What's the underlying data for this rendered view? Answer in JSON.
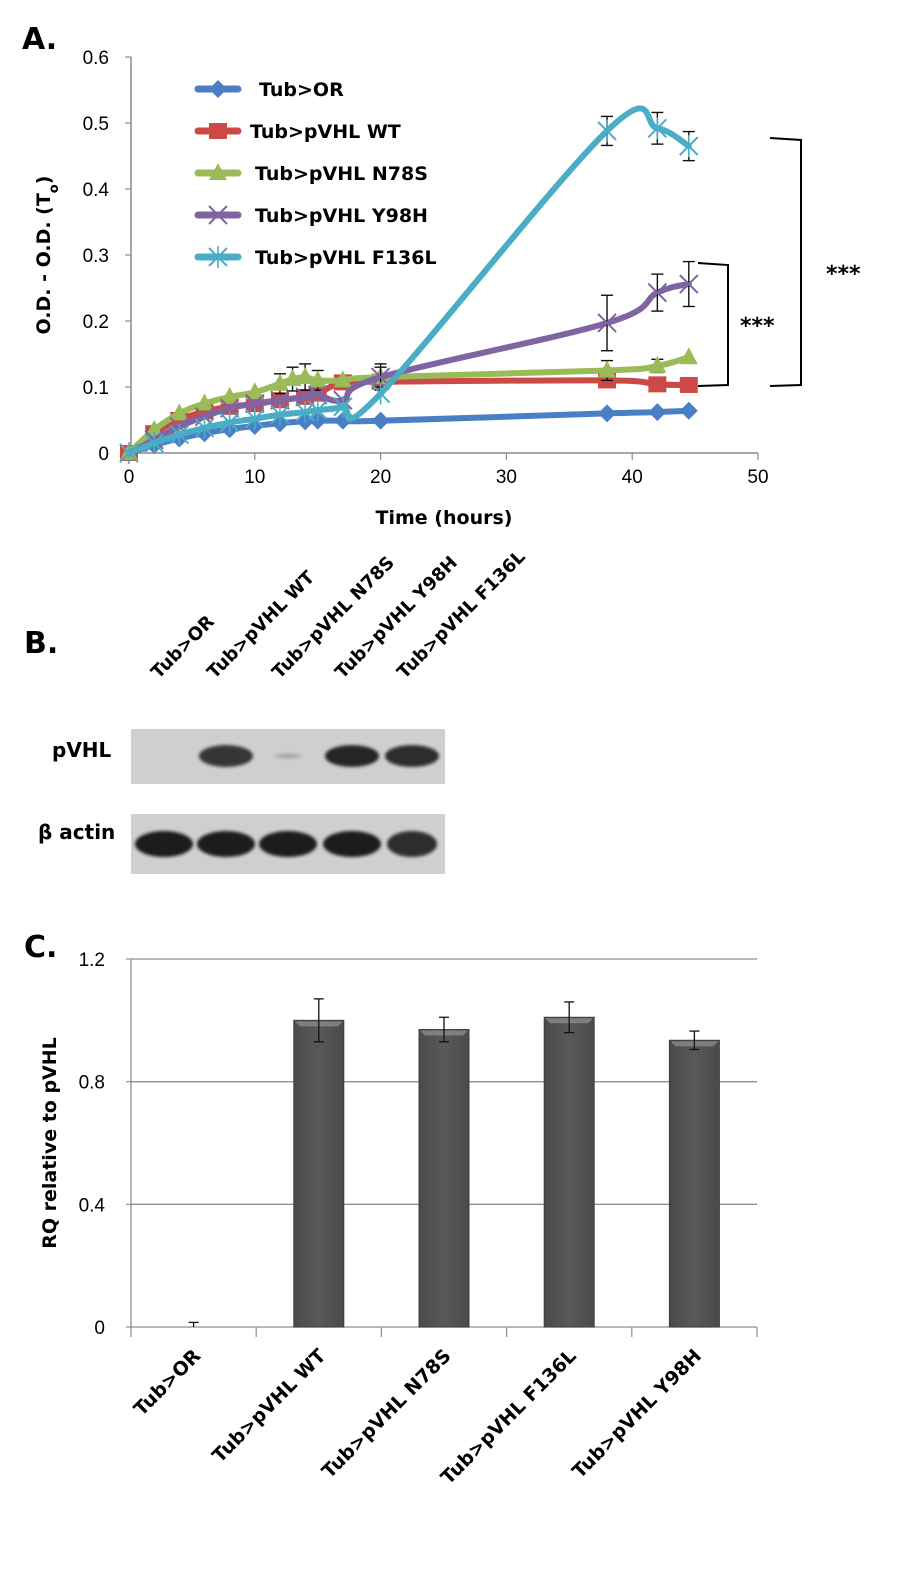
{
  "figure": {
    "panel_a_label": "A.",
    "panel_b_label": "B.",
    "panel_c_label": "C."
  },
  "chart_data": [
    {
      "type": "line",
      "title": "",
      "xlabel": "Time (hours)",
      "ylabel": "O.D. - O.D. (T",
      "ylabel_subscript": "o",
      "ylabel_close": ")",
      "xlim": [
        0,
        50
      ],
      "ylim": [
        0,
        0.6
      ],
      "xticks": [
        "0",
        "10",
        "20",
        "30",
        "40",
        "50"
      ],
      "yticks": [
        "0",
        "0.1",
        "0.2",
        "0.3",
        "0.4",
        "0.5",
        "0.6"
      ],
      "grid": false,
      "legend_position": "top-left",
      "series": [
        {
          "name": "Tub>OR",
          "color": "#4a7fc6",
          "marker": "diamond",
          "x": [
            0,
            2,
            4,
            6,
            8,
            10,
            12,
            14,
            15,
            17,
            20,
            38,
            42,
            44.5
          ],
          "y": [
            0,
            0.012,
            0.022,
            0.03,
            0.036,
            0.041,
            0.045,
            0.048,
            0.049,
            0.049,
            0.049,
            0.06,
            0.062,
            0.064
          ],
          "err": [
            0,
            0,
            0,
            0,
            0,
            0,
            0,
            0,
            0,
            0,
            0,
            0,
            0,
            0
          ]
        },
        {
          "name": "Tub>pVHL WT",
          "color": "#cc4a45",
          "marker": "square",
          "x": [
            0,
            2,
            4,
            6,
            8,
            10,
            12,
            14,
            15,
            17,
            20,
            38,
            42,
            44.5
          ],
          "y": [
            0,
            0.03,
            0.05,
            0.063,
            0.07,
            0.074,
            0.08,
            0.085,
            0.09,
            0.107,
            0.108,
            0.11,
            0.104,
            0.103
          ],
          "err": [
            0,
            0,
            0,
            0,
            0,
            0,
            0,
            0,
            0,
            0,
            0,
            0,
            0,
            0
          ]
        },
        {
          "name": "Tub>pVHL N78S",
          "color": "#9bbb59",
          "marker": "triangle",
          "x": [
            0,
            2,
            4,
            6,
            8,
            10,
            12,
            13,
            14,
            15,
            17,
            20,
            38,
            42,
            44.5
          ],
          "y": [
            0,
            0.035,
            0.06,
            0.075,
            0.085,
            0.092,
            0.105,
            0.112,
            0.115,
            0.11,
            0.11,
            0.115,
            0.125,
            0.132,
            0.145
          ],
          "err": [
            0,
            0,
            0,
            0,
            0,
            0,
            0.015,
            0.018,
            0.02,
            0.015,
            0,
            0.015,
            0.015,
            0.01,
            0
          ]
        },
        {
          "name": "Tub>pVHL Y98H",
          "color": "#8064a2",
          "marker": "x",
          "x": [
            0,
            2,
            4,
            6,
            8,
            10,
            12,
            14,
            15,
            17,
            20,
            38,
            42,
            44.5
          ],
          "y": [
            0,
            0.02,
            0.04,
            0.055,
            0.068,
            0.075,
            0.08,
            0.085,
            0.088,
            0.08,
            0.115,
            0.197,
            0.243,
            0.256
          ],
          "err": [
            0,
            0,
            0,
            0,
            0,
            0,
            0,
            0,
            0,
            0,
            0.02,
            0.042,
            0.028,
            0.034
          ]
        },
        {
          "name": "Tub>pVHL F136L",
          "color": "#4bacc6",
          "marker": "star",
          "x": [
            0,
            2,
            4,
            6,
            8,
            10,
            12,
            14,
            15,
            17,
            20,
            38,
            42,
            44.5
          ],
          "y": [
            0,
            0.015,
            0.028,
            0.038,
            0.046,
            0.052,
            0.058,
            0.062,
            0.065,
            0.07,
            0.09,
            0.488,
            0.492,
            0.465
          ],
          "err": [
            0,
            0,
            0,
            0,
            0,
            0,
            0,
            0,
            0,
            0,
            0,
            0.022,
            0.024,
            0.022
          ]
        }
      ],
      "annotations": [
        {
          "text": "***",
          "between": [
            "Tub>pVHL WT",
            "Tub>pVHL Y98H"
          ]
        },
        {
          "text": "***",
          "between": [
            "Tub>pVHL WT",
            "Tub>pVHL F136L"
          ]
        }
      ]
    },
    {
      "type": "bar",
      "title": "",
      "xlabel": "",
      "ylabel": "RQ relative to pVHL",
      "ylim": [
        0,
        1.2
      ],
      "yticks": [
        "0",
        "0.4",
        "0.8",
        "1.2"
      ],
      "grid": true,
      "categories": [
        "Tub>OR",
        "Tub>pVHL WT",
        "Tub>pVHL N78S",
        "Tub>pVHL F136L",
        "Tub>pVHL Y98H"
      ],
      "values": [
        0,
        1.0,
        0.97,
        1.01,
        0.935
      ],
      "err": [
        0.015,
        0.07,
        0.04,
        0.05,
        0.03
      ],
      "bar_color": "#595959"
    }
  ],
  "blot": {
    "lanes": [
      "Tub>OR",
      "Tub>pVHL WT",
      "Tub>pVHL N78S",
      "Tub>pVHL Y98H",
      "Tub>pVHL F136L"
    ],
    "rows": [
      {
        "label": "pVHL",
        "intensity": [
          0,
          0.85,
          0.12,
          0.95,
          0.9
        ]
      },
      {
        "label": "β actin",
        "intensity": [
          1,
          1,
          1,
          1,
          0.9
        ]
      }
    ]
  }
}
